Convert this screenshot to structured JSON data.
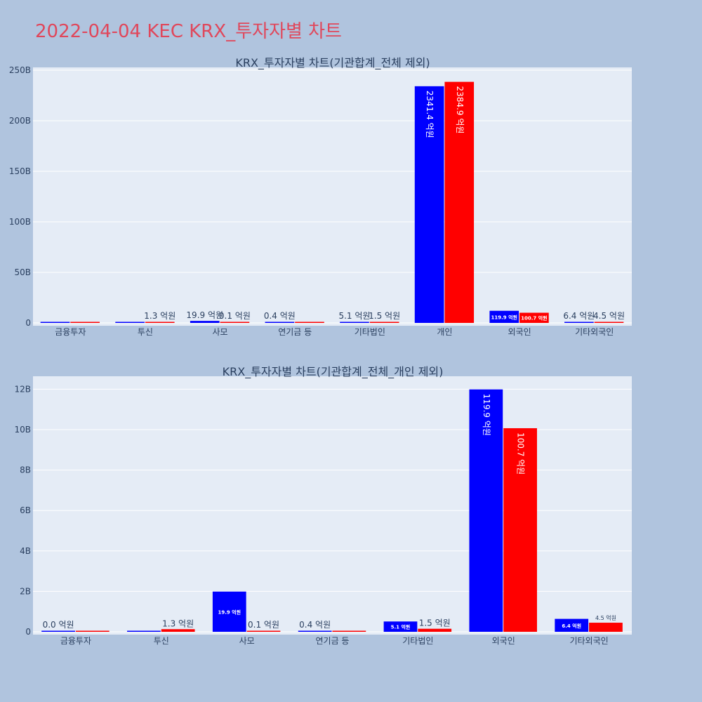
{
  "page": {
    "title": "2022-04-04 KEC KRX_투자자별 차트"
  },
  "colors": {
    "background": "#b0c4de",
    "plot_bg": "#e5ecf6",
    "buy": "#0000ff",
    "sell": "#ff0000",
    "title": "#e0475b"
  },
  "chart_data": [
    {
      "type": "bar",
      "title": "KRX_투자자별 차트(기관합계_전체 제외)",
      "categories": [
        "금융투자",
        "투신",
        "사모",
        "연기금 등",
        "기타법인",
        "개인",
        "외국인",
        "기타외국인"
      ],
      "ylim": [
        0,
        250
      ],
      "y_tick_values": [
        0,
        50,
        100,
        150,
        200,
        250
      ],
      "y_tick_labels": [
        "0",
        "50B",
        "100B",
        "150B",
        "200B",
        "250B"
      ],
      "grid": true,
      "series": [
        {
          "color": "#0000ff",
          "values": [
            0.0,
            0.0,
            1.99,
            0.04,
            0.51,
            234.14,
            11.99,
            0.64
          ],
          "labels": [
            "",
            "",
            "19.9 억원",
            "0.4 억원",
            "5.1 억원",
            "2341.4 억원",
            "119.9 억원",
            "6.4 억원"
          ]
        },
        {
          "color": "#ff0000",
          "values": [
            0.0,
            0.13,
            0.01,
            0.0,
            0.15,
            238.49,
            10.07,
            0.45
          ],
          "labels": [
            "",
            "1.3 억원",
            "0.1 억원",
            "",
            "1.5 억원",
            "2384.9 억원",
            "100.7 억원",
            "4.5 억원"
          ]
        }
      ]
    },
    {
      "type": "bar",
      "title": "KRX_투자자별 차트(기관합계_전체_개인 제외)",
      "categories": [
        "금융투자",
        "투신",
        "사모",
        "연기금 등",
        "기타법인",
        "외국인",
        "기타외국인"
      ],
      "ylim": [
        0,
        12.5
      ],
      "y_tick_values": [
        0,
        2,
        4,
        6,
        8,
        10,
        12
      ],
      "y_tick_labels": [
        "0",
        "2B",
        "4B",
        "6B",
        "8B",
        "10B",
        "12B"
      ],
      "grid": true,
      "series": [
        {
          "color": "#0000ff",
          "values": [
            0.0,
            0.0,
            1.99,
            0.04,
            0.51,
            11.99,
            0.64
          ],
          "labels": [
            "0.0 억원",
            "",
            "19.9 억원",
            "0.4 억원",
            "5.1 억원",
            "119.9 억원",
            "6.4 억원"
          ]
        },
        {
          "color": "#ff0000",
          "values": [
            0.0,
            0.13,
            0.01,
            0.0,
            0.15,
            10.07,
            0.45
          ],
          "labels": [
            "",
            "1.3 억원",
            "0.1 억원",
            "",
            "1.5 억원",
            "100.7 억원",
            "4.5 억원"
          ]
        }
      ]
    }
  ]
}
